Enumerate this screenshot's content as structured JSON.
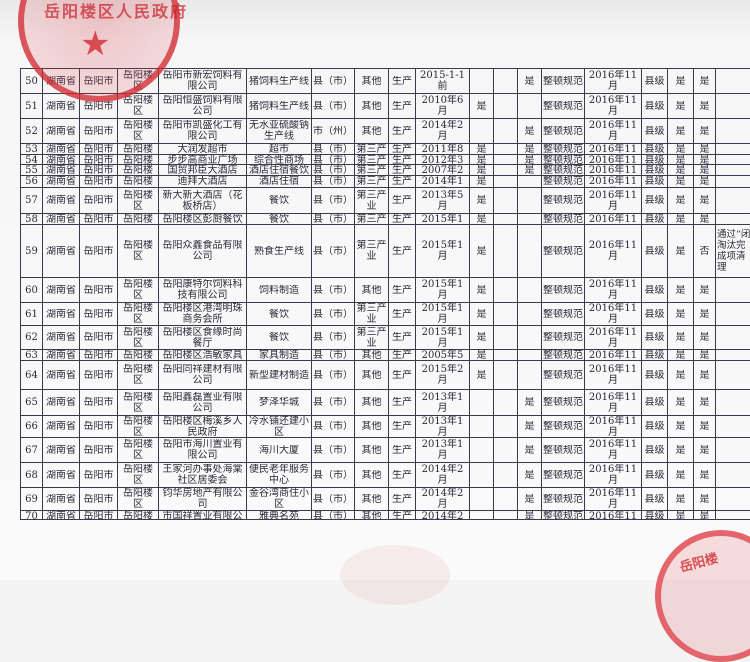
{
  "stamp_text": "岳阳楼区人民政府",
  "stamp2_text": "岳阳楼",
  "colors": {
    "stamp": "#d22832",
    "ink": "#2a2a3a"
  },
  "rows": [
    [
      "50",
      "湖南省",
      "岳阳市",
      "岳阳楼区",
      "岳阳市新宏饲料有限公司",
      "猪饲料生产线",
      "县（市）",
      "其他",
      "生产",
      "2015-1-1前",
      "",
      "",
      "是",
      "整顿规范",
      "2016年11月",
      "县级",
      "是",
      "是",
      ""
    ],
    [
      "51",
      "湖南省",
      "岳阳市",
      "岳阳楼区",
      "岳阳恒盛饲料有限公司",
      "猪饲料生产线",
      "县（市）",
      "其他",
      "生产",
      "2010年6月",
      "是",
      "",
      "",
      "整顿规范",
      "2016年11月",
      "县级",
      "是",
      "是",
      ""
    ],
    [
      "52",
      "湖南省",
      "岳阳市",
      "岳阳楼区",
      "岳阳市凯盛化工有限公司",
      "无水亚硫酸钠生产线",
      "市（州）",
      "其他",
      "生产",
      "2014年2月",
      "",
      "",
      "是",
      "整顿规范",
      "2016年11月",
      "县级",
      "是",
      "是",
      ""
    ],
    [
      "53",
      "湖南省",
      "岳阳市",
      "岳阳楼",
      "大润发超市",
      "超市",
      "县（市）",
      "第三产",
      "生产",
      "2011年8月",
      "是",
      "",
      "是",
      "整顿规范",
      "2016年11月",
      "县级",
      "是",
      "是",
      ""
    ],
    [
      "54",
      "湖南省",
      "岳阳市",
      "岳阳楼",
      "步步高商业广场",
      "综合性商场",
      "县（市）",
      "第三产",
      "生产",
      "2012年3月",
      "是",
      "",
      "是",
      "整顿规范",
      "2016年11月",
      "县级",
      "是",
      "是",
      ""
    ],
    [
      "55",
      "湖南省",
      "岳阳市",
      "岳阳楼",
      "国贸邦臣大酒店",
      "酒店住宿餐饮",
      "县（市）",
      "第三产",
      "生产",
      "2007年2月",
      "是",
      "",
      "是",
      "整顿规范",
      "2016年11月",
      "县级",
      "是",
      "是",
      ""
    ],
    [
      "56",
      "湖南省",
      "岳阳市",
      "岳阳楼",
      "迪拜大酒店",
      "酒店住宿",
      "县（市）",
      "第三产",
      "生产",
      "2014年1月",
      "是",
      "",
      "",
      "整顿规范",
      "2016年11月",
      "县级",
      "是",
      "是",
      ""
    ],
    [
      "57",
      "湖南省",
      "岳阳市",
      "岳阳楼区",
      "新大新大酒店（花板桥店）",
      "餐饮",
      "县（市）",
      "第三产业",
      "生产",
      "2013年5月",
      "是",
      "",
      "",
      "整顿规范",
      "2016年11月",
      "县级",
      "是",
      "是",
      ""
    ],
    [
      "58",
      "湖南省",
      "岳阳市",
      "岳阳楼",
      "岳阳楼区彭厨餐饮",
      "餐饮",
      "县（市）",
      "第三产",
      "生产",
      "2015年1月",
      "是",
      "",
      "",
      "整顿规范",
      "2016年11月",
      "县级",
      "是",
      "是",
      ""
    ],
    [
      "59",
      "湖南省",
      "岳阳市",
      "岳阳楼区",
      "岳阳众鑫食品有限公司",
      "熟食生产线",
      "县（市）",
      "第三产业",
      "生产",
      "2015年1月",
      "是",
      "",
      "",
      "整顿规范",
      "2016年11月",
      "县级",
      "是",
      "否",
      "通过“闭淘汰完成项清理"
    ],
    [
      "60",
      "湖南省",
      "岳阳市",
      "岳阳楼区",
      "岳阳康特尔饲料科技有限公司",
      "饲料制造",
      "县（市）",
      "其他",
      "生产",
      "2015年1月",
      "是",
      "",
      "",
      "整顿规范",
      "2016年11月",
      "县级",
      "是",
      "是",
      ""
    ],
    [
      "61",
      "湖南省",
      "岳阳市",
      "岳阳楼区",
      "岳阳楼区港湾明珠商务会所",
      "餐饮",
      "县（市）",
      "第三产业",
      "生产",
      "2015年1月",
      "是",
      "",
      "",
      "整顿规范",
      "2016年11月",
      "县级",
      "是",
      "是",
      ""
    ],
    [
      "62",
      "湖南省",
      "岳阳市",
      "岳阳楼区",
      "岳阳楼区食缘时尚餐厅",
      "餐饮",
      "县（市）",
      "第三产业",
      "生产",
      "2015年1月",
      "是",
      "",
      "",
      "整顿规范",
      "2016年11月",
      "县级",
      "是",
      "是",
      ""
    ],
    [
      "63",
      "湖南省",
      "岳阳市",
      "岳阳楼",
      "岳阳楼区浩敏家具",
      "家具制造",
      "县（市）",
      "其他",
      "生产",
      "2005年5月",
      "是",
      "",
      "",
      "整顿规范",
      "2016年11月",
      "县级",
      "是",
      "是",
      ""
    ],
    [
      "64",
      "湖南省",
      "岳阳市",
      "岳阳楼区",
      "岳阳同祥建材有限公司",
      "新型建材制造",
      "县（市）",
      "其他",
      "生产",
      "2015年2月",
      "是",
      "",
      "",
      "整顿规范",
      "2016年11月",
      "县级",
      "是",
      "是",
      ""
    ],
    [
      "65",
      "湖南省",
      "岳阳市",
      "岳阳楼区",
      "岳阳鑫磊置业有限公司",
      "梦泽华城",
      "县（市）",
      "其他",
      "生产",
      "2013年1月",
      "",
      "",
      "是",
      "整顿规范",
      "2016年11月",
      "县级",
      "是",
      "是",
      ""
    ],
    [
      "66",
      "湖南省",
      "岳阳市",
      "岳阳楼区",
      "岳阳楼区梅溪乡人民政府",
      "冷水铺还建小区",
      "县（市）",
      "其他",
      "生产",
      "2013年1月",
      "",
      "",
      "是",
      "整顿规范",
      "2016年11月",
      "县级",
      "是",
      "是",
      ""
    ],
    [
      "67",
      "湖南省",
      "岳阳市",
      "岳阳楼区",
      "岳阳市海川置业有限公司",
      "海川大厦",
      "县（市）",
      "其他",
      "生产",
      "2013年1月",
      "",
      "",
      "是",
      "整顿规范",
      "2016年11月",
      "县级",
      "是",
      "是",
      ""
    ],
    [
      "68",
      "湖南省",
      "岳阳市",
      "岳阳楼区",
      "王家河办事处海棠社区居委会",
      "便民老年服务中心",
      "县（市）",
      "其他",
      "生产",
      "2014年2月",
      "",
      "",
      "是",
      "整顿规范",
      "2016年11月",
      "县级",
      "是",
      "是",
      ""
    ],
    [
      "69",
      "湖南省",
      "岳阳市",
      "岳阳楼区",
      "钧华房地产有限公司",
      "金谷湾商住小区",
      "县（市）",
      "其他",
      "生产",
      "2014年2月",
      "",
      "",
      "是",
      "整顿规范",
      "2016年11月",
      "县级",
      "是",
      "是",
      ""
    ],
    [
      "70",
      "湖南省",
      "岳阳市",
      "岳阳楼",
      "市国祥置业有限公",
      "雅典名苑",
      "县（市）",
      "其他",
      "生产",
      "2014年2月",
      "",
      "",
      "是",
      "整顿规范",
      "2016年11月",
      "县级",
      "是",
      "是",
      ""
    ]
  ]
}
